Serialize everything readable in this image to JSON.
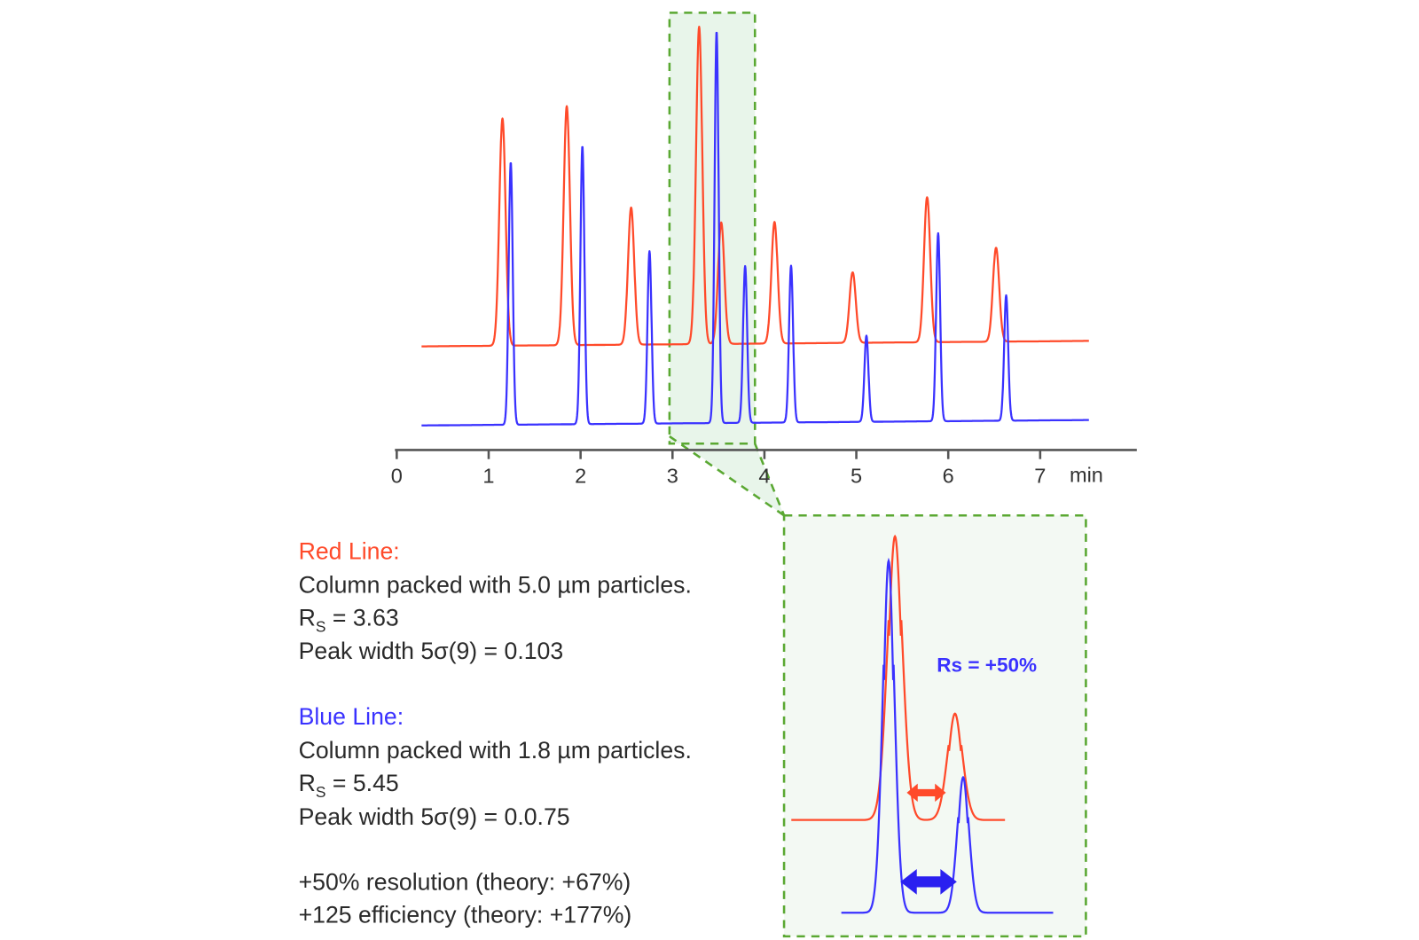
{
  "colors": {
    "red": "#ff4a2a",
    "blue": "#3a32ff",
    "highlight": "#5aa832",
    "highlight_fill": "#e8f5ea",
    "axis": "#555555"
  },
  "chart_data": {
    "type": "line",
    "title": "",
    "xlabel": "min",
    "ylabel": "",
    "xlim": [
      0,
      7.5
    ],
    "x_ticks": [
      "0",
      "1",
      "2",
      "3",
      "4",
      "5",
      "6",
      "7"
    ],
    "grid": false,
    "y_axis_shown": false,
    "series": [
      {
        "name": "Red Line",
        "color": "#ff4a2a",
        "peaks_min": [
          1.15,
          1.85,
          2.55,
          3.29,
          3.53,
          4.11,
          4.96,
          5.77,
          6.52
        ],
        "relative_heights": [
          0.58,
          0.61,
          0.35,
          0.81,
          0.31,
          0.31,
          0.18,
          0.37,
          0.24
        ]
      },
      {
        "name": "Blue Line",
        "color": "#3a32ff",
        "peaks_min": [
          1.24,
          2.02,
          2.75,
          3.48,
          3.79,
          4.29,
          5.11,
          5.89,
          6.63
        ],
        "relative_heights": [
          0.67,
          0.71,
          0.44,
          1.0,
          0.4,
          0.4,
          0.22,
          0.48,
          0.32
        ]
      }
    ],
    "zoom_region_min": [
      2.97,
      3.9
    ],
    "inset_label": "Rs = +50%"
  },
  "legend": {
    "red": {
      "title": "Red Line:",
      "desc": "Column packed with 5.0 µm particles.",
      "rs_prefix": "R",
      "rs_sub": "S",
      "rs_value": " = 3.63",
      "width": "Peak width 5σ(9) = 0.103"
    },
    "blue": {
      "title": "Blue Line:",
      "desc": "Column packed with 1.8 µm particles.",
      "rs_prefix": "R",
      "rs_sub": "S",
      "rs_value": " = 5.45",
      "width": "Peak width 5σ(9) = 0.0.75"
    },
    "summary": [
      "+50% resolution (theory: +67%)",
      "+125 efficiency (theory: +177%)"
    ]
  }
}
